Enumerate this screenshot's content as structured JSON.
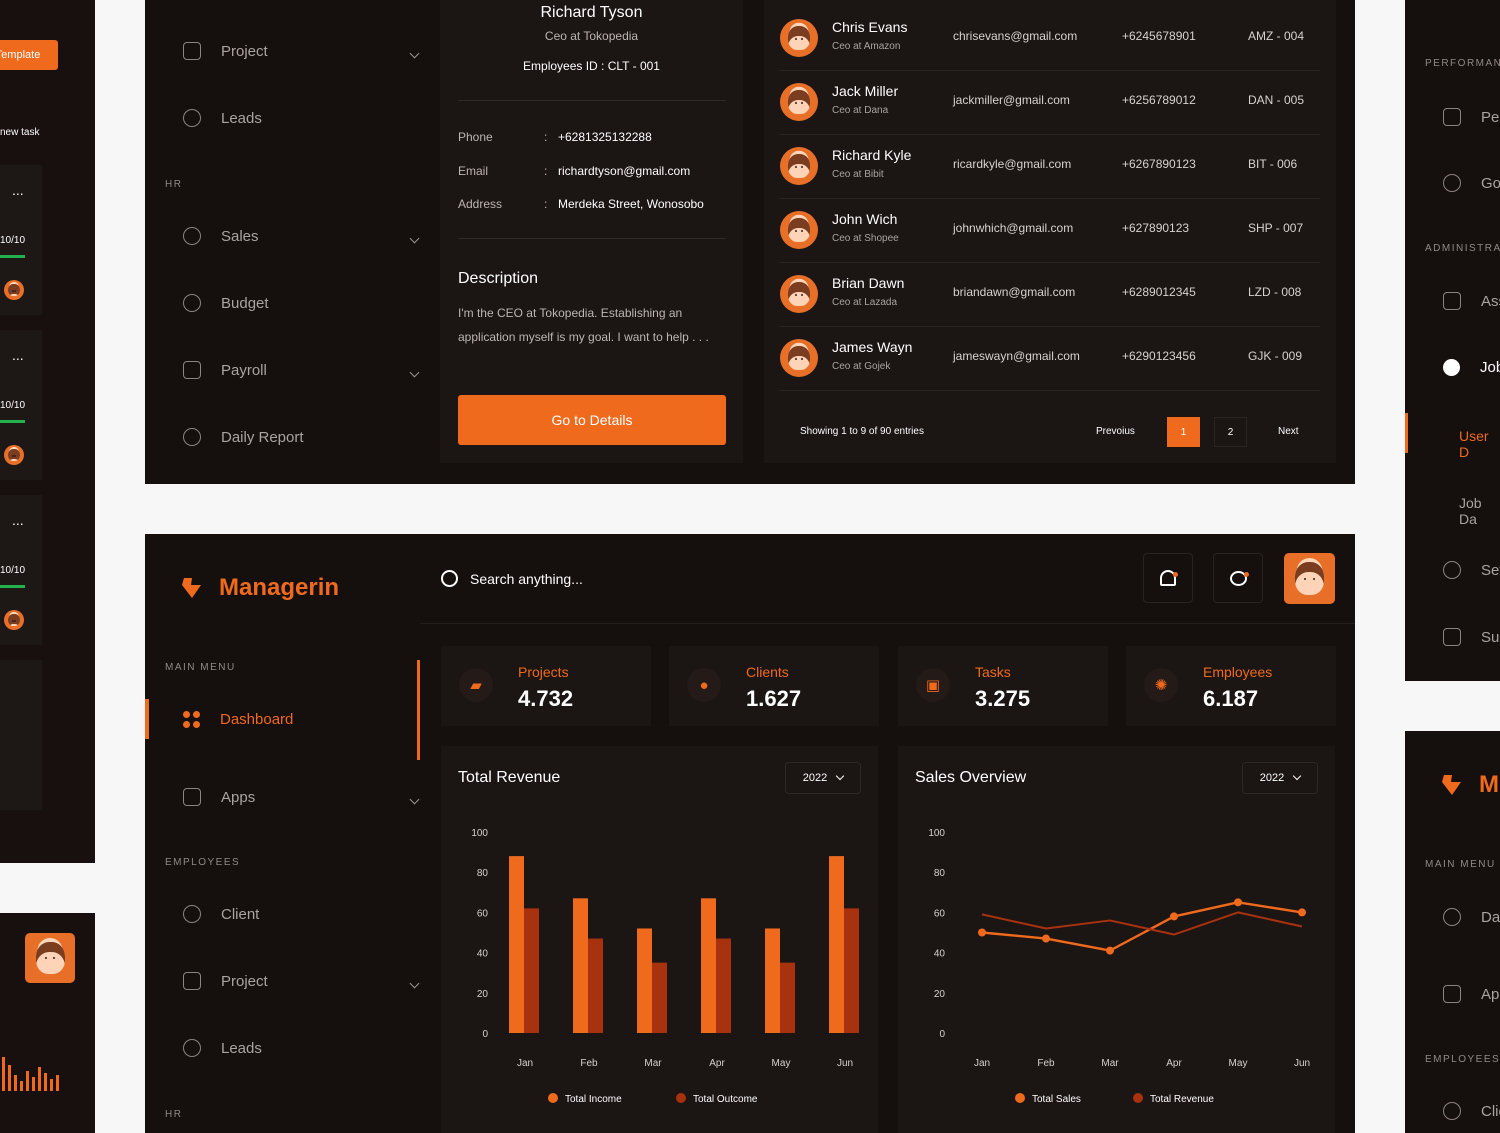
{
  "palette": {
    "accent": "#f06a1d",
    "accent_dark": "#a8320e",
    "background": "#150f0e",
    "surface": "#1b1514",
    "muted": "#9a9390"
  },
  "top_sidebar": {
    "items": [
      {
        "label": "Project",
        "icon": "folder-icon",
        "expandable": true
      },
      {
        "label": "Leads",
        "icon": "leads-icon",
        "expandable": false
      }
    ],
    "section_hr": "HR",
    "hr_items": [
      {
        "label": "Sales",
        "icon": "sales-icon",
        "expandable": true
      },
      {
        "label": "Budget",
        "icon": "budget-icon",
        "expandable": false
      },
      {
        "label": "Payroll",
        "icon": "payroll-icon",
        "expandable": true
      },
      {
        "label": "Daily Report",
        "icon": "daily-report-icon",
        "expandable": false
      }
    ]
  },
  "profile": {
    "name": "Richard Tyson",
    "role": "Ceo at Tokopedia",
    "employee_id": "Employees ID : CLT - 001",
    "phone_label": "Phone",
    "phone": "+6281325132288",
    "email_label": "Email",
    "email": "richardtyson@gmail.com",
    "address_label": "Address",
    "address": "Merdeka Street, Wonosobo",
    "separator": ":",
    "description_title": "Description",
    "description": "I'm the CEO at Tokopedia. Establishing an application myself is my goal. I want to help . . .",
    "button": "Go to Details"
  },
  "clients": {
    "rows": [
      {
        "name": "Chris Evans",
        "role": "Ceo at Amazon",
        "email": "chrisevans@gmail.com",
        "phone": "+6245678901",
        "id": "AMZ - 004"
      },
      {
        "name": "Jack Miller",
        "role": "Ceo at Dana",
        "email": "jackmiller@gmail.com",
        "phone": "+6256789012",
        "id": "DAN - 005"
      },
      {
        "name": "Richard Kyle",
        "role": "Ceo at Bibit",
        "email": "ricardkyle@gmail.com",
        "phone": "+6267890123",
        "id": "BIT - 006"
      },
      {
        "name": "John Wich",
        "role": "Ceo at Shopee",
        "email": "johnwhich@gmail.com",
        "phone": "+627890123",
        "id": "SHP - 007"
      },
      {
        "name": "Brian Dawn",
        "role": "Ceo at Lazada",
        "email": "briandawn@gmail.com",
        "phone": "+6289012345",
        "id": "LZD - 008"
      },
      {
        "name": "James Wayn",
        "role": "Ceo at Gojek",
        "email": "jameswayn@gmail.com",
        "phone": "+6290123456",
        "id": "GJK - 009"
      }
    ],
    "showing": "Showing 1 to 9 of 90 entries",
    "previous": "Prevoius",
    "page1": "1",
    "page2": "2",
    "next": "Next"
  },
  "left_partial": {
    "template": "Template",
    "new_task": "new task",
    "more": "...",
    "progress": "10/10"
  },
  "right_partial": {
    "performance": "PERFORMAN",
    "per": "Per",
    "go": "Go",
    "administration": "ADMINISTRA",
    "ass": "Ass",
    "job": "Job",
    "user_d": "User D",
    "job_da": "Job Da",
    "set": "Set",
    "sub": "Sub",
    "logo_letter": "M",
    "main_menu": "MAIN MENU",
    "das": "Das",
    "app": "App",
    "employees": "EMPLOYEES",
    "clie": "Clie"
  },
  "app": {
    "brand": "Managerin",
    "search_placeholder": "Search anything...",
    "menu_title": "MAIN MENU",
    "menu": [
      {
        "label": "Dashboard",
        "icon": "dashboard-icon",
        "active": true
      },
      {
        "label": "Apps",
        "icon": "apps-icon",
        "expandable": true
      }
    ],
    "employees_title": "EMPLOYEES",
    "employees_menu": [
      {
        "label": "Client",
        "icon": "client-icon"
      },
      {
        "label": "Project",
        "icon": "folder-icon",
        "expandable": true
      },
      {
        "label": "Leads",
        "icon": "leads-icon"
      }
    ],
    "hr_title": "HR"
  },
  "stats": [
    {
      "label": "Projects",
      "value": "4.732",
      "icon": "folder-icon"
    },
    {
      "label": "Clients",
      "value": "1.627",
      "icon": "clients-icon"
    },
    {
      "label": "Tasks",
      "value": "3.275",
      "icon": "tasks-icon"
    },
    {
      "label": "Employees",
      "value": "6.187",
      "icon": "employees-icon"
    }
  ],
  "chart_data": [
    {
      "type": "bar",
      "title": "Total Revenue",
      "year": "2022",
      "categories": [
        "Jan",
        "Feb",
        "Mar",
        "Apr",
        "May",
        "Jun"
      ],
      "ylim": [
        0,
        100
      ],
      "yticks": [
        0,
        20,
        40,
        60,
        80,
        100
      ],
      "series": [
        {
          "name": "Total Income",
          "values": [
            88,
            67,
            52,
            67,
            52,
            88
          ]
        },
        {
          "name": "Total Outcome",
          "values": [
            62,
            47,
            35,
            47,
            35,
            62
          ]
        }
      ],
      "legend": "bottom"
    },
    {
      "type": "line",
      "title": "Sales Overview",
      "year": "2022",
      "categories": [
        "Jan",
        "Feb",
        "Mar",
        "Apr",
        "May",
        "Jun"
      ],
      "ylim": [
        0,
        100
      ],
      "yticks": [
        0,
        20,
        40,
        60,
        80,
        100
      ],
      "series": [
        {
          "name": "Total Sales",
          "values": [
            50,
            47,
            41,
            58,
            65,
            60
          ]
        },
        {
          "name": "Total Revenue",
          "values": [
            59,
            52,
            56,
            49,
            60,
            53
          ]
        }
      ],
      "legend": "bottom"
    }
  ]
}
